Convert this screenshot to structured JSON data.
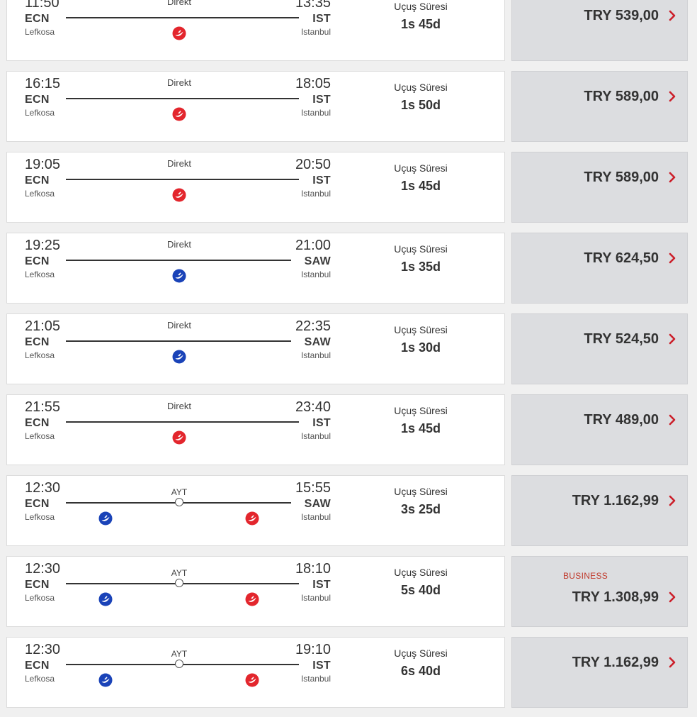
{
  "colors": {
    "red_airline": "#e3262d",
    "blue_airline": "#1a43b8",
    "accent": "#cc1f2a",
    "price_bg": "#dcdde0"
  },
  "flights": [
    {
      "dep_time": "11:50",
      "dep_code": "ECN",
      "dep_city": "Lefkosa",
      "arr_time": "13:35",
      "arr_code": "IST",
      "arr_city": "Istanbul",
      "route_type": "direct",
      "route_label": "Direkt",
      "airlines": [
        "red"
      ],
      "duration_label": "Uçuş Süresi",
      "duration": "1s 45d",
      "fare_class": "",
      "price": "TRY 539,00"
    },
    {
      "dep_time": "16:15",
      "dep_code": "ECN",
      "dep_city": "Lefkosa",
      "arr_time": "18:05",
      "arr_code": "IST",
      "arr_city": "Istanbul",
      "route_type": "direct",
      "route_label": "Direkt",
      "airlines": [
        "red"
      ],
      "duration_label": "Uçuş Süresi",
      "duration": "1s 50d",
      "fare_class": "",
      "price": "TRY 589,00"
    },
    {
      "dep_time": "19:05",
      "dep_code": "ECN",
      "dep_city": "Lefkosa",
      "arr_time": "20:50",
      "arr_code": "IST",
      "arr_city": "Istanbul",
      "route_type": "direct",
      "route_label": "Direkt",
      "airlines": [
        "red"
      ],
      "duration_label": "Uçuş Süresi",
      "duration": "1s 45d",
      "fare_class": "",
      "price": "TRY 589,00"
    },
    {
      "dep_time": "19:25",
      "dep_code": "ECN",
      "dep_city": "Lefkosa",
      "arr_time": "21:00",
      "arr_code": "SAW",
      "arr_city": "Istanbul",
      "route_type": "direct",
      "route_label": "Direkt",
      "airlines": [
        "blue"
      ],
      "duration_label": "Uçuş Süresi",
      "duration": "1s 35d",
      "fare_class": "",
      "price": "TRY 624,50"
    },
    {
      "dep_time": "21:05",
      "dep_code": "ECN",
      "dep_city": "Lefkosa",
      "arr_time": "22:35",
      "arr_code": "SAW",
      "arr_city": "Istanbul",
      "route_type": "direct",
      "route_label": "Direkt",
      "airlines": [
        "blue"
      ],
      "duration_label": "Uçuş Süresi",
      "duration": "1s 30d",
      "fare_class": "",
      "price": "TRY 524,50"
    },
    {
      "dep_time": "21:55",
      "dep_code": "ECN",
      "dep_city": "Lefkosa",
      "arr_time": "23:40",
      "arr_code": "IST",
      "arr_city": "Istanbul",
      "route_type": "direct",
      "route_label": "Direkt",
      "airlines": [
        "red"
      ],
      "duration_label": "Uçuş Süresi",
      "duration": "1s 45d",
      "fare_class": "",
      "price": "TRY 489,00"
    },
    {
      "dep_time": "12:30",
      "dep_code": "ECN",
      "dep_city": "Lefkosa",
      "arr_time": "15:55",
      "arr_code": "SAW",
      "arr_city": "Istanbul",
      "route_type": "stop",
      "route_label": "AYT",
      "airlines": [
        "blue",
        "red"
      ],
      "duration_label": "Uçuş Süresi",
      "duration": "3s 25d",
      "fare_class": "",
      "price": "TRY 1.162,99"
    },
    {
      "dep_time": "12:30",
      "dep_code": "ECN",
      "dep_city": "Lefkosa",
      "arr_time": "18:10",
      "arr_code": "IST",
      "arr_city": "Istanbul",
      "route_type": "stop",
      "route_label": "AYT",
      "airlines": [
        "blue",
        "red"
      ],
      "duration_label": "Uçuş Süresi",
      "duration": "5s 40d",
      "fare_class": "BUSINESS",
      "price": "TRY 1.308,99"
    },
    {
      "dep_time": "12:30",
      "dep_code": "ECN",
      "dep_city": "Lefkosa",
      "arr_time": "19:10",
      "arr_code": "IST",
      "arr_city": "Istanbul",
      "route_type": "stop",
      "route_label": "AYT",
      "airlines": [
        "blue",
        "red"
      ],
      "duration_label": "Uçuş Süresi",
      "duration": "6s 40d",
      "fare_class": "",
      "price": "TRY 1.162,99"
    }
  ]
}
